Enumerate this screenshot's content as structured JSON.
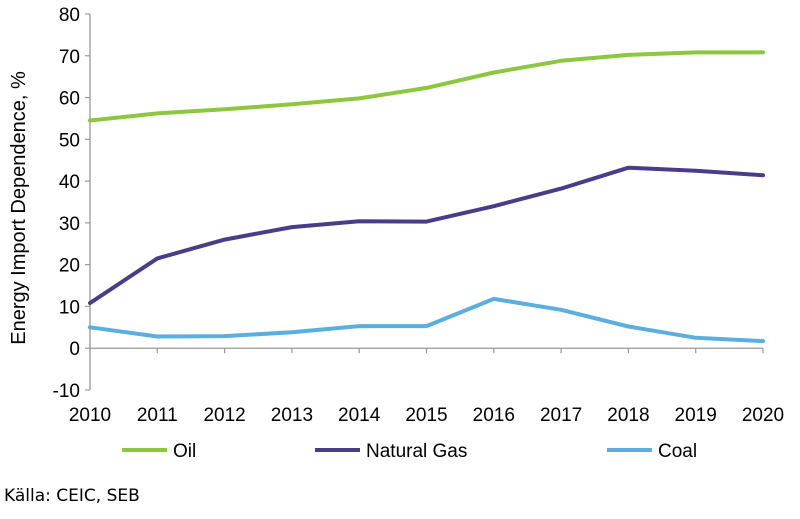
{
  "chart_data": {
    "type": "line",
    "title": "",
    "xlabel": "",
    "ylabel": "Energy Import Dependence, %",
    "x": [
      "2010",
      "2011",
      "2012",
      "2013",
      "2014",
      "2015",
      "2016",
      "2017",
      "2018",
      "2019",
      "2020"
    ],
    "ylim": [
      -10,
      80
    ],
    "yticks": [
      -10,
      0,
      10,
      20,
      30,
      40,
      50,
      60,
      70,
      80
    ],
    "grid": false,
    "legend_position": "bottom",
    "series": [
      {
        "name": "Oil",
        "color": "#8dc63f",
        "values": [
          54.5,
          56.2,
          57.2,
          58.4,
          59.8,
          62.3,
          66.0,
          68.8,
          70.2,
          70.8,
          70.8
        ]
      },
      {
        "name": "Natural Gas",
        "color": "#4b3c8a",
        "values": [
          10.8,
          21.5,
          26.0,
          29.0,
          30.4,
          30.3,
          34.0,
          38.2,
          43.2,
          42.5,
          41.4
        ]
      },
      {
        "name": "Coal",
        "color": "#5aaee0",
        "values": [
          5.0,
          2.8,
          2.9,
          3.8,
          5.3,
          5.3,
          11.8,
          9.2,
          5.2,
          2.5,
          1.7
        ]
      }
    ]
  },
  "source": "Källa: CEIC, SEB"
}
